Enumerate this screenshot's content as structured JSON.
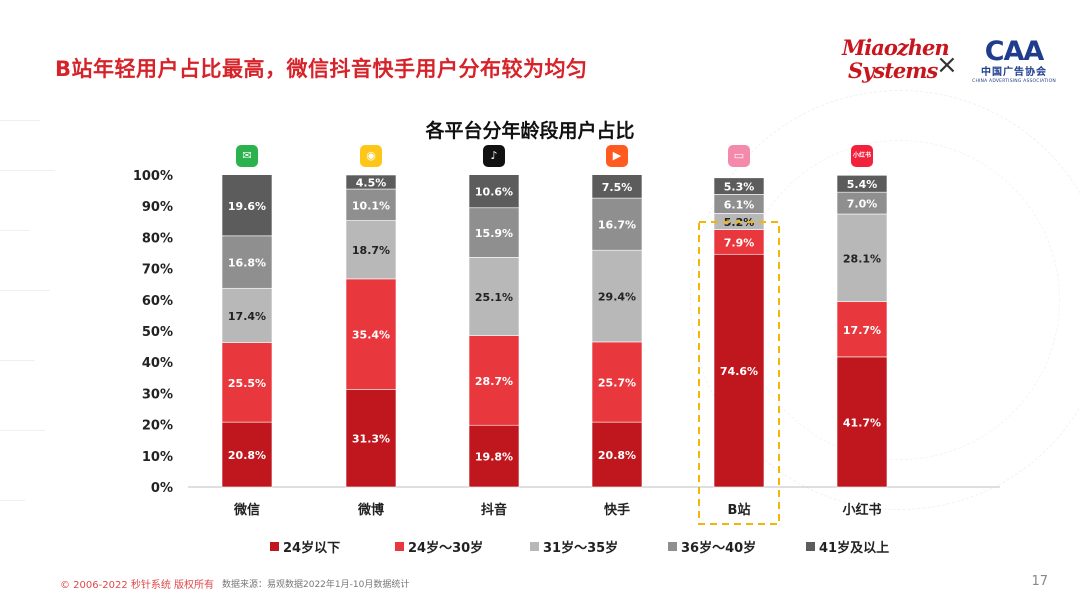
{
  "header": {
    "title": "B站年轻用户占比最高，微信抖音快手用户分布较为均匀",
    "logo_left_line1": "Miaozhen",
    "logo_left_line2": "Systems",
    "logo_times": "×",
    "logo_right_mark": "CAA",
    "logo_right_cn": "中国广告协会",
    "logo_right_en": "CHINA ADVERTISING ASSOCIATION"
  },
  "chart_data": {
    "type": "bar",
    "stacked": true,
    "title": "各平台分年龄段用户占比",
    "categories": [
      "微信",
      "微博",
      "抖音",
      "快手",
      "B站",
      "小红书"
    ],
    "y_ticks": [
      "0%",
      "10%",
      "20%",
      "30%",
      "40%",
      "50%",
      "60%",
      "70%",
      "80%",
      "90%",
      "100%"
    ],
    "ylim": [
      0,
      100
    ],
    "grid": false,
    "legend_position": "bottom",
    "highlight_category": "B站",
    "series": [
      {
        "name": "24岁以下",
        "color": "#c0161e",
        "values": [
          20.8,
          31.3,
          19.8,
          20.8,
          74.6,
          41.7
        ],
        "labels": [
          "20.8%",
          "31.3%",
          "19.8%",
          "20.8%",
          "74.6%",
          "41.7%"
        ]
      },
      {
        "name": "24岁～30岁",
        "color": "#e8383d",
        "values": [
          25.5,
          35.4,
          28.7,
          25.7,
          7.9,
          17.7
        ],
        "labels": [
          "25.5%",
          "35.4%",
          "28.7%",
          "25.7%",
          "7.9%",
          "17.7%"
        ]
      },
      {
        "name": "31岁～35岁",
        "color": "#b8b8b8",
        "values": [
          17.4,
          18.7,
          25.1,
          29.4,
          5.2,
          28.1
        ],
        "labels": [
          "17.4%",
          "18.7%",
          "25.1%",
          "29.4%",
          "5.2%",
          "28.1%"
        ]
      },
      {
        "name": "36岁～40岁",
        "color": "#8f8f8f",
        "values": [
          16.8,
          10.1,
          15.9,
          16.7,
          6.1,
          7.0
        ],
        "labels": [
          "16.8%",
          "10.1%",
          "15.9%",
          "16.7%",
          "6.1%",
          "7.0%"
        ]
      },
      {
        "name": "41岁及以上",
        "color": "#5c5c5c",
        "values": [
          19.6,
          4.5,
          10.6,
          7.5,
          5.3,
          5.4
        ],
        "labels": [
          "19.6%",
          "4.5%",
          "10.6%",
          "7.5%",
          "5.3%",
          "5.4%"
        ]
      }
    ]
  },
  "icons": [
    {
      "name": "wechat-icon",
      "color": "#2bb24c",
      "glyph": "✉"
    },
    {
      "name": "weibo-icon",
      "color": "#ffc61a",
      "glyph": "◉"
    },
    {
      "name": "douyin-icon",
      "color": "#111111",
      "glyph": "♪"
    },
    {
      "name": "kuaishou-icon",
      "color": "#ff5a1f",
      "glyph": "▶"
    },
    {
      "name": "bilibili-icon",
      "color": "#f589ac",
      "glyph": "▭"
    },
    {
      "name": "xiaohongshu-icon",
      "color": "#f2223c",
      "glyph": "小红书"
    }
  ],
  "footer": {
    "copyright": "© 2006-2022 秒针系统 版权所有",
    "source": "数据来源：易观数据2022年1月-10月数据统计",
    "page_number": "17"
  }
}
